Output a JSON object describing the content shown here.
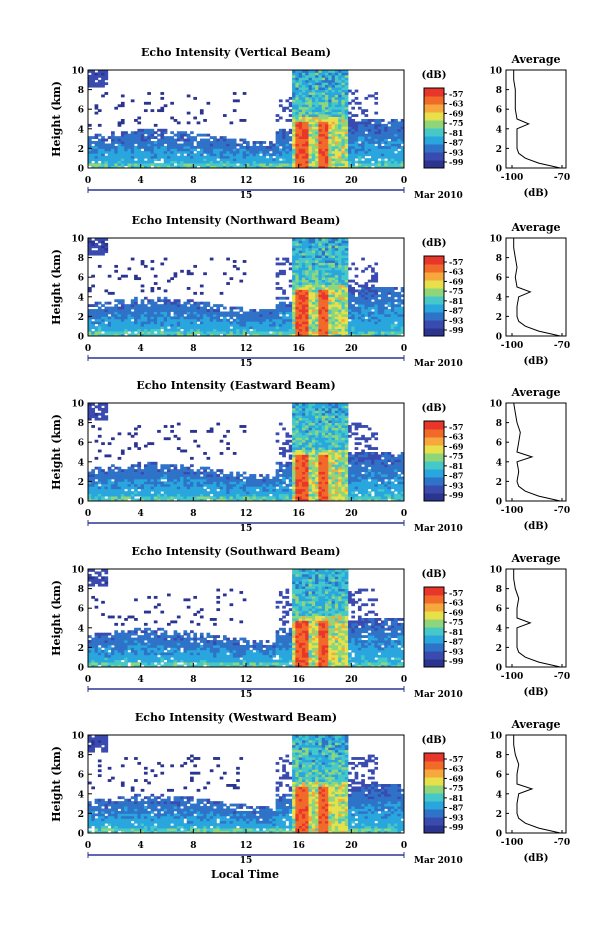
{
  "colorbar": {
    "unit": "(dB)",
    "ticks": [
      "-57",
      "-63",
      "-69",
      "-75",
      "-81",
      "-87",
      "-93",
      "-99"
    ],
    "colors": [
      "#2b3590",
      "#3a4bb0",
      "#2f73c8",
      "#2aa6de",
      "#46c8c8",
      "#8fd67a",
      "#e8e04a",
      "#f6a83c",
      "#f26a2a",
      "#e8362a"
    ]
  },
  "bottom_xlabel": "Local Time",
  "average_title": "Average",
  "average_xlabel": "(dB)",
  "average_xticks": [
    "-100",
    "-70"
  ],
  "main_xticks": [
    "0",
    "4",
    "8",
    "12",
    "16",
    "20",
    "0"
  ],
  "main_yticks": [
    "0",
    "2",
    "4",
    "6",
    "8",
    "10"
  ],
  "main_ylabel": "Height (km)",
  "date_day": "15",
  "date_month": "Mar 2010",
  "chart_data": [
    {
      "type": "heatmap",
      "title": "Echo Intensity (Vertical Beam)",
      "xlabel": "",
      "ylabel": "Height (km)",
      "xlim": [
        0,
        24
      ],
      "ylim": [
        0,
        10
      ],
      "colorbar_range": [
        -99,
        -57
      ],
      "average_profile": {
        "xlim": [
          -100,
          -70
        ],
        "height_km": [
          0,
          0.5,
          1,
          1.5,
          2,
          3,
          4,
          4.5,
          5,
          6,
          7,
          8,
          9,
          10
        ],
        "db": [
          -71,
          -84,
          -92,
          -96,
          -97,
          -97,
          -97,
          -90,
          -97,
          -98,
          -98,
          -98,
          -99,
          -99
        ]
      }
    },
    {
      "type": "heatmap",
      "title": "Echo Intensity (Northward Beam)",
      "xlabel": "",
      "ylabel": "Height (km)",
      "xlim": [
        0,
        24
      ],
      "ylim": [
        0,
        10
      ],
      "colorbar_range": [
        -99,
        -57
      ],
      "average_profile": {
        "xlim": [
          -100,
          -70
        ],
        "height_km": [
          0,
          0.5,
          1,
          1.5,
          2,
          3,
          4,
          4.5,
          5,
          6,
          7,
          8,
          9,
          10
        ],
        "db": [
          -71,
          -84,
          -92,
          -96,
          -97,
          -97,
          -96,
          -89,
          -97,
          -98,
          -97,
          -98,
          -99,
          -99
        ]
      }
    },
    {
      "type": "heatmap",
      "title": "Echo Intensity (Eastward Beam)",
      "xlabel": "",
      "ylabel": "Height (km)",
      "xlim": [
        0,
        24
      ],
      "ylim": [
        0,
        10
      ],
      "colorbar_range": [
        -99,
        -57
      ],
      "average_profile": {
        "xlim": [
          -100,
          -70
        ],
        "height_km": [
          0,
          0.5,
          1,
          1.5,
          2,
          3,
          4,
          4.5,
          5,
          6,
          7,
          8,
          9,
          10
        ],
        "db": [
          -71,
          -84,
          -92,
          -96,
          -97,
          -96,
          -97,
          -88,
          -97,
          -96,
          -95,
          -97,
          -98,
          -99
        ]
      }
    },
    {
      "type": "heatmap",
      "title": "Echo Intensity (Southward Beam)",
      "xlabel": "",
      "ylabel": "Height (km)",
      "xlim": [
        0,
        24
      ],
      "ylim": [
        0,
        10
      ],
      "colorbar_range": [
        -99,
        -57
      ],
      "average_profile": {
        "xlim": [
          -100,
          -70
        ],
        "height_km": [
          0,
          0.5,
          1,
          1.5,
          2,
          3,
          4,
          4.5,
          5,
          6,
          7,
          8,
          9,
          10
        ],
        "db": [
          -71,
          -84,
          -92,
          -96,
          -97,
          -97,
          -97,
          -89,
          -97,
          -97,
          -96,
          -98,
          -99,
          -99
        ]
      }
    },
    {
      "type": "heatmap",
      "title": "Echo Intensity (Westward Beam)",
      "xlabel": "",
      "ylabel": "Height (km)",
      "xlim": [
        0,
        24
      ],
      "ylim": [
        0,
        10
      ],
      "colorbar_range": [
        -99,
        -57
      ],
      "average_profile": {
        "xlim": [
          -100,
          -70
        ],
        "height_km": [
          0,
          0.5,
          1,
          1.5,
          2,
          3,
          4,
          4.5,
          5,
          6,
          7,
          8,
          9,
          10
        ],
        "db": [
          -71,
          -84,
          -92,
          -96,
          -97,
          -97,
          -96,
          -88,
          -97,
          -97,
          -96,
          -98,
          -99,
          -99
        ]
      }
    }
  ]
}
